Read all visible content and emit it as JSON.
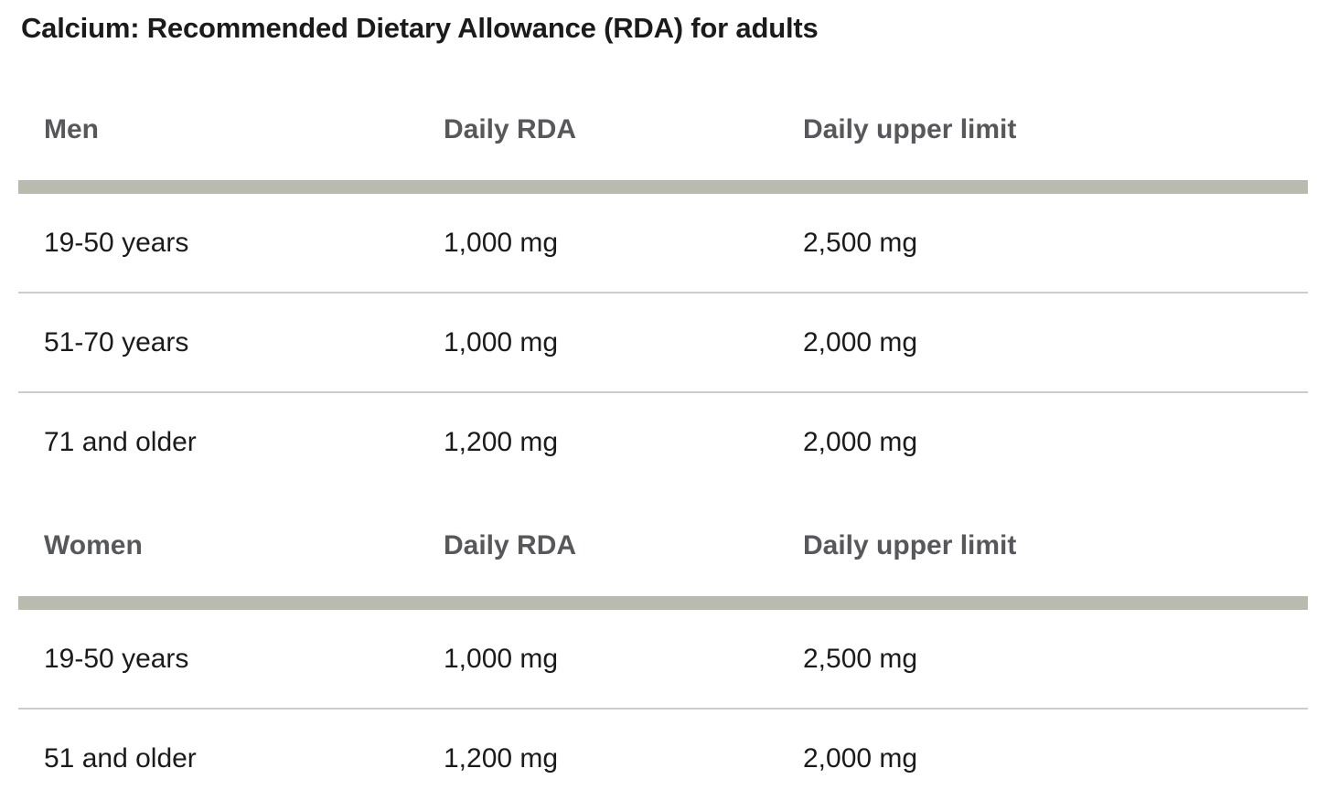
{
  "page": {
    "title": "Calcium: Recommended Dietary Allowance (RDA) for adults"
  },
  "table": {
    "sections": [
      {
        "group_label": "Men",
        "col2_label": "Daily RDA",
        "col3_label": "Daily upper limit",
        "rows": [
          {
            "age": "19-50 years",
            "daily_rda": "1,000 mg",
            "daily_upper_limit": "2,500 mg"
          },
          {
            "age": "51-70 years",
            "daily_rda": "1,000 mg",
            "daily_upper_limit": "2,000 mg"
          },
          {
            "age": "71 and older",
            "daily_rda": "1,200 mg",
            "daily_upper_limit": "2,000 mg"
          }
        ]
      },
      {
        "group_label": "Women",
        "col2_label": "Daily RDA",
        "col3_label": "Daily upper limit",
        "rows": [
          {
            "age": "19-50 years",
            "daily_rda": "1,000 mg",
            "daily_upper_limit": "2,500 mg"
          },
          {
            "age": "51 and older",
            "daily_rda": "1,200 mg",
            "daily_upper_limit": "2,000 mg"
          }
        ]
      }
    ]
  },
  "colors": {
    "background": "#ffffff",
    "title_text": "#1b1b1b",
    "body_text": "#1b1b1b",
    "header_text": "#57585b",
    "section_bar": "#b9bbae",
    "row_divider": "#cccccc"
  }
}
